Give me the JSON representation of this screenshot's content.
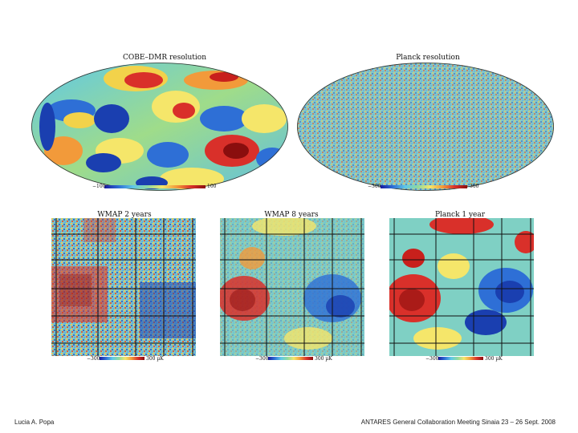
{
  "panels": {
    "cobe": {
      "title": "COBE–DMR resolution",
      "min": "−100",
      "max": "100"
    },
    "planck_full": {
      "title": "Planck resolution",
      "min": "−300",
      "max": "300"
    },
    "wmap2": {
      "title": "WMAP 2 years",
      "min": "−300",
      "max": "300 µK"
    },
    "wmap8": {
      "title": "WMAP 8 years",
      "min": "−300",
      "max": "300 µK"
    },
    "planck1": {
      "title": "Planck 1 year",
      "min": "−300",
      "max": "300 µK"
    }
  },
  "footer": {
    "author": "Lucia A.  Popa",
    "event": "ANTARES General Collaboration Meeting   Sinaia 23 – 26 Sept.  2008"
  },
  "colors": {
    "cold": "#1a3fb0",
    "mid": "#7fd3c4",
    "warm": "#f2d24a",
    "hot": "#c8201c"
  }
}
